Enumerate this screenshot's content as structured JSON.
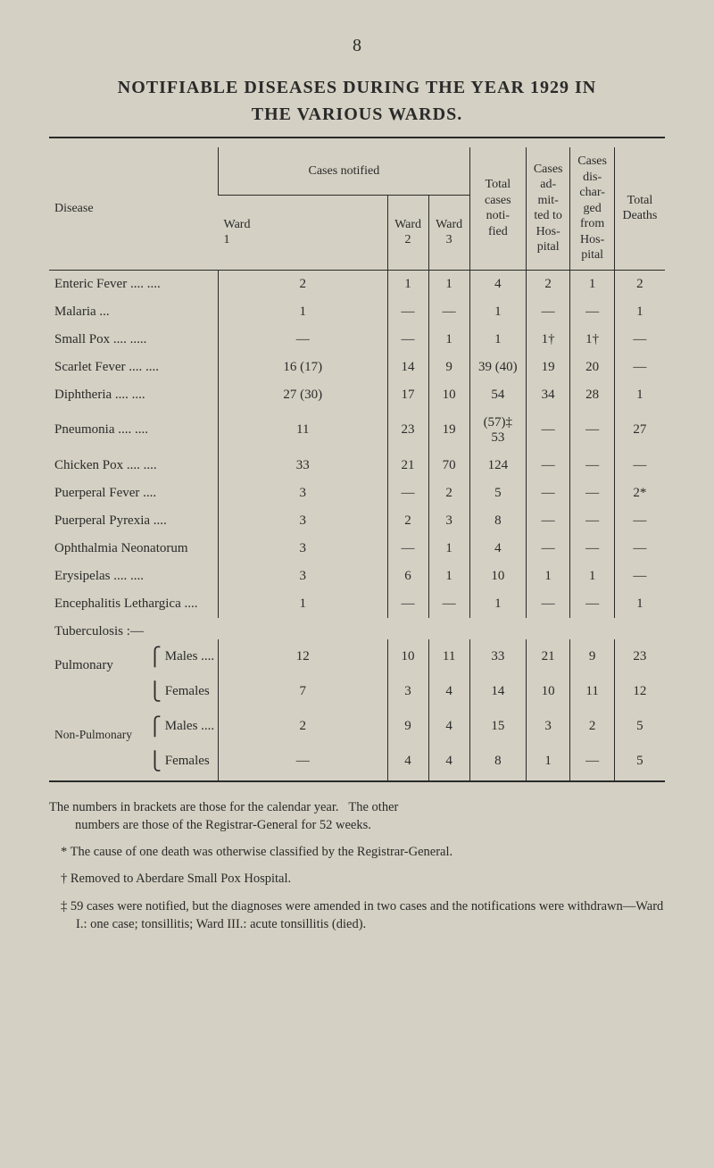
{
  "page_number": "8",
  "title_line1": "NOTIFIABLE DISEASES DURING THE YEAR 1929 IN",
  "title_line2": "THE VARIOUS WARDS.",
  "headers": {
    "disease": "Disease",
    "cases_notified": "Cases notified",
    "ward1": "Ward 1",
    "ward2": "Ward 2",
    "ward3": "Ward 3",
    "total_cases_notified": "Total cases noti-fied",
    "cases_admitted": "Cases ad-mit-ted to Hos-pital",
    "cases_discharged": "Cases dis-char-ged from Hos-pital",
    "total_deaths": "Total Deaths"
  },
  "rows": [
    {
      "disease": "Enteric Fever     ....          ....",
      "w1": "2",
      "w2": "1",
      "w3": "1",
      "total": "4",
      "adm": "2",
      "dis": "1",
      "deaths": "2"
    },
    {
      "disease": "Malaria                 ...",
      "w1": "1",
      "w2": "—",
      "w3": "—",
      "total": "1",
      "adm": "—",
      "dis": "—",
      "deaths": "1"
    },
    {
      "disease": "Small Pox          ....           .....",
      "w1": "—",
      "w2": "—",
      "w3": "1",
      "total": "1",
      "adm": "1†",
      "dis": "1†",
      "deaths": "—"
    },
    {
      "disease": "Scarlet Fever     ....          ....",
      "w1": "16 (17)",
      "w2": "14",
      "w3": "9",
      "total": "39 (40)",
      "adm": "19",
      "dis": "20",
      "deaths": "—"
    },
    {
      "disease": "Diphtheria            ....         ....",
      "w1": "27 (30)",
      "w2": "17",
      "w3": "10",
      "total": "54",
      "adm": "34",
      "dis": "28",
      "deaths": "1"
    },
    {
      "disease": "Pneumonia           ....          ....",
      "w1": "11",
      "w2": "23",
      "w3": "19",
      "total": "(57)‡<br>53",
      "adm": "—",
      "dis": "—",
      "deaths": "27"
    },
    {
      "disease": "Chicken Pox       ....          ....",
      "w1": "33",
      "w2": "21",
      "w3": "70",
      "total": "124",
      "adm": "—",
      "dis": "—",
      "deaths": "—"
    },
    {
      "disease": "Puerperal Fever                ....",
      "w1": "3",
      "w2": "—",
      "w3": "2",
      "total": "5",
      "adm": "—",
      "dis": "—",
      "deaths": "2*"
    },
    {
      "disease": "Puerperal Pyrexia             ....",
      "w1": "3",
      "w2": "2",
      "w3": "3",
      "total": "8",
      "adm": "—",
      "dis": "—",
      "deaths": "—"
    },
    {
      "disease": "Ophthalmia Neonatorum",
      "w1": "3",
      "w2": "—",
      "w3": "1",
      "total": "4",
      "adm": "—",
      "dis": "—",
      "deaths": "—"
    },
    {
      "disease": "Erysipelas            ....          ....",
      "w1": "3",
      "w2": "6",
      "w3": "1",
      "total": "10",
      "adm": "1",
      "dis": "1",
      "deaths": "—"
    },
    {
      "disease": "Encephalitis Lethargica ....",
      "w1": "1",
      "w2": "—",
      "w3": "—",
      "total": "1",
      "adm": "—",
      "dis": "—",
      "deaths": "1"
    }
  ],
  "tuberculosis_label": "Tuberculosis :—",
  "sub_rows": [
    {
      "group": "Pulmonary",
      "sub": "Males ....",
      "w1": "12",
      "w2": "10",
      "w3": "11",
      "total": "33",
      "adm": "21",
      "dis": "9",
      "deaths": "23"
    },
    {
      "group": "",
      "sub": "Females",
      "w1": "7",
      "w2": "3",
      "w3": "4",
      "total": "14",
      "adm": "10",
      "dis": "11",
      "deaths": "12"
    },
    {
      "group": "Non-Pulmonary",
      "sub": "Males ....",
      "w1": "2",
      "w2": "9",
      "w3": "4",
      "total": "15",
      "adm": "3",
      "dis": "2",
      "deaths": "5"
    },
    {
      "group": "",
      "sub": "Females",
      "w1": "—",
      "w2": "4",
      "w3": "4",
      "total": "8",
      "adm": "1",
      "dis": "—",
      "deaths": "5"
    }
  ],
  "footnotes": {
    "main": "The numbers in brackets are those for the calendar year.  The other numbers are those of the Registrar-General for 52 weeks.",
    "star": "* The cause of one death was otherwise classified by the Registrar-General.",
    "dagger": "† Removed to Aberdare Small Pox Hospital.",
    "ddagger": "‡ 59 cases were notified, but the diagnoses were amended in two cases and the notifications were withdrawn—Ward I.: one case; tonsillitis; Ward III.: acute tonsillitis (died)."
  },
  "styling": {
    "background_color": "#d4d0c3",
    "text_color": "#2a2a2a",
    "title_fontsize": 20,
    "body_fontsize": 15,
    "font_family": "Times New Roman"
  }
}
